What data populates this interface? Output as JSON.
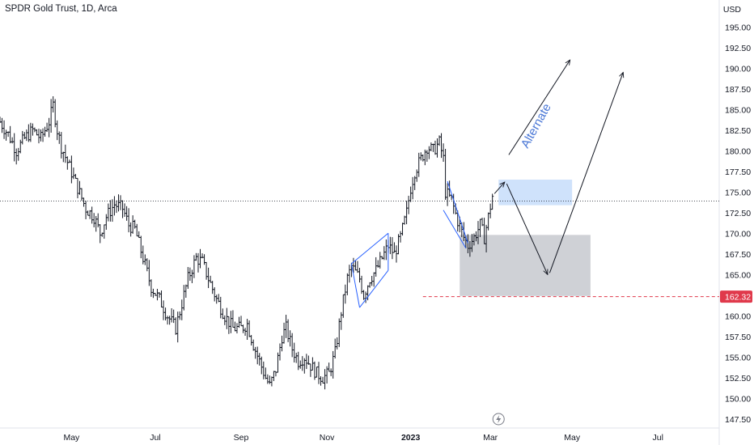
{
  "header": {
    "title": "SPDR Gold Trust, 1D, Arca",
    "currency": "USD"
  },
  "colors": {
    "bars": "#131722",
    "drawing": "#131722",
    "channel": "#2962ff",
    "target_zone": "#cfe2fb",
    "support_zone": "#cfd1d6",
    "price_line": "#e0394b",
    "alternate_text": "#4a77d6"
  },
  "icons": {
    "lightning": "lightning-icon"
  },
  "chart_data": {
    "type": "ohlc",
    "title": "SPDR Gold Trust, 1D, Arca",
    "y_axis": {
      "min": 146.5,
      "max": 196.5,
      "ticks": [
        147.5,
        150.0,
        152.5,
        155.0,
        157.5,
        160.0,
        162.5,
        165.0,
        167.5,
        170.0,
        172.5,
        175.0,
        177.5,
        180.0,
        182.5,
        185.0,
        187.5,
        190.0,
        192.5,
        195.0
      ],
      "tick_labels": [
        "147.50",
        "150.00",
        "152.50",
        "155.00",
        "157.50",
        "160.00",
        "162.50",
        "165.00",
        "167.50",
        "170.00",
        "172.50",
        "175.00",
        "177.50",
        "180.00",
        "182.50",
        "185.00",
        "187.50",
        "190.00",
        "192.50",
        "195.00"
      ],
      "position": "right"
    },
    "x_axis": {
      "labels": [
        {
          "text": "May",
          "bold": false,
          "t": 19
        },
        {
          "text": "Jul",
          "bold": false,
          "t": 60
        },
        {
          "text": "Sep",
          "bold": false,
          "t": 102
        },
        {
          "text": "Nov",
          "bold": false,
          "t": 144
        },
        {
          "text": "2023",
          "bold": true,
          "t": 185
        },
        {
          "text": "Mar",
          "bold": false,
          "t": 224
        },
        {
          "text": "May",
          "bold": false,
          "t": 264
        },
        {
          "text": "Jul",
          "bold": false,
          "t": 306
        }
      ],
      "t_range": [
        -16,
        336
      ]
    },
    "price_marker": {
      "value": 162.32,
      "label": "162.32"
    },
    "last_price_level": 173.9,
    "series_keyframes": [
      [
        -16,
        183.5
      ],
      [
        -12,
        182.0
      ],
      [
        -8,
        180.0
      ],
      [
        -4,
        181.5
      ],
      [
        0,
        182.5
      ],
      [
        4,
        181.5
      ],
      [
        8,
        183.5
      ],
      [
        10,
        185.5
      ],
      [
        12,
        182.5
      ],
      [
        14,
        180.5
      ],
      [
        18,
        178.0
      ],
      [
        22,
        175.5
      ],
      [
        26,
        173.0
      ],
      [
        30,
        172.0
      ],
      [
        33,
        170.0
      ],
      [
        36,
        172.0
      ],
      [
        40,
        173.5
      ],
      [
        44,
        173.0
      ],
      [
        47,
        171.0
      ],
      [
        50,
        170.5
      ],
      [
        54,
        167.0
      ],
      [
        58,
        163.5
      ],
      [
        62,
        162.0
      ],
      [
        66,
        160.0
      ],
      [
        70,
        158.5
      ],
      [
        73,
        161.5
      ],
      [
        76,
        164.5
      ],
      [
        80,
        167.0
      ],
      [
        83,
        166.5
      ],
      [
        86,
        164.5
      ],
      [
        90,
        162.0
      ],
      [
        94,
        160.0
      ],
      [
        98,
        158.5
      ],
      [
        102,
        158.5
      ],
      [
        105,
        159.0
      ],
      [
        108,
        156.5
      ],
      [
        111,
        154.5
      ],
      [
        114,
        152.5
      ],
      [
        116,
        151.5
      ],
      [
        119,
        153.5
      ],
      [
        122,
        157.5
      ],
      [
        124,
        158.5
      ],
      [
        127,
        156.0
      ],
      [
        130,
        154.5
      ],
      [
        133,
        155.0
      ],
      [
        136,
        154.0
      ],
      [
        139,
        153.0
      ],
      [
        142,
        152.5
      ],
      [
        145,
        153.0
      ],
      [
        148,
        155.5
      ],
      [
        151,
        160.5
      ],
      [
        154,
        164.5
      ],
      [
        156,
        166.0
      ],
      [
        160,
        164.5
      ],
      [
        162,
        162.5
      ],
      [
        165,
        164.5
      ],
      [
        168,
        165.5
      ],
      [
        171,
        167.0
      ],
      [
        174,
        168.5
      ],
      [
        177,
        167.5
      ],
      [
        180,
        169.5
      ],
      [
        183,
        172.5
      ],
      [
        185,
        175.5
      ],
      [
        187,
        177.5
      ],
      [
        190,
        179.0
      ],
      [
        193,
        180.5
      ],
      [
        196,
        180.0
      ],
      [
        199,
        181.0
      ],
      [
        201,
        179.0
      ],
      [
        202,
        175.0
      ],
      [
        205,
        174.0
      ],
      [
        208,
        171.5
      ],
      [
        211,
        169.5
      ],
      [
        213,
        168.5
      ],
      [
        216,
        169.5
      ],
      [
        219,
        171.0
      ],
      [
        221,
        169.5
      ],
      [
        223,
        172.0
      ],
      [
        225,
        174.5
      ]
    ]
  },
  "annotations": {
    "alternate_label": "Alternate"
  }
}
